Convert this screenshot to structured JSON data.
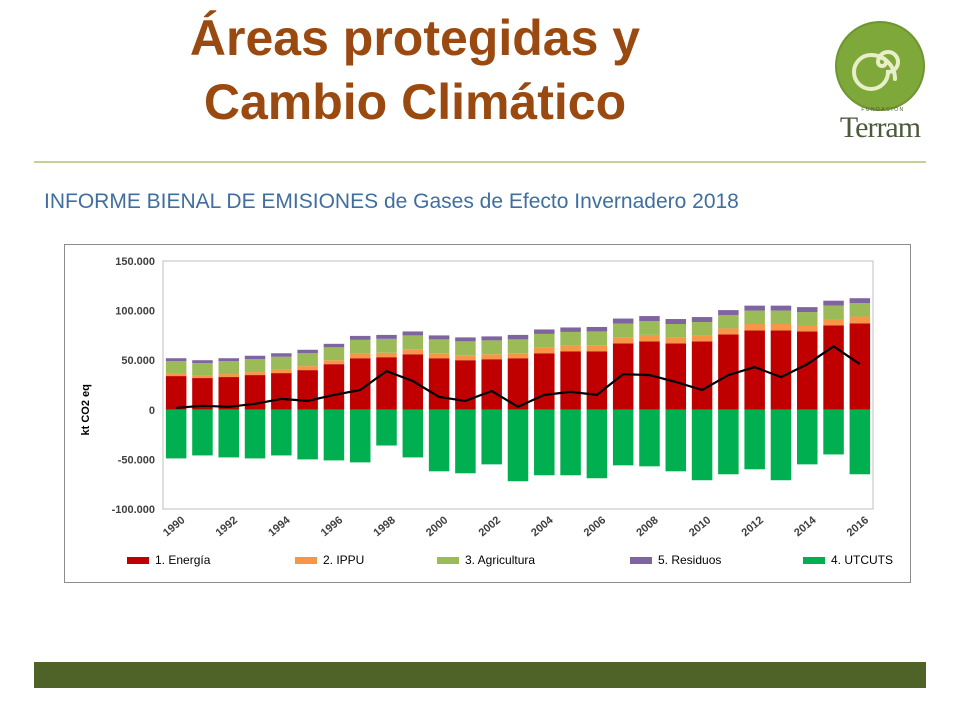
{
  "header": {
    "title_line1": "Áreas protegidas y",
    "title_line2": "Cambio Climático",
    "subtitle": "INFORME BIENAL DE EMISIONES de Gases de Efecto Invernadero 2018"
  },
  "logo": {
    "small_text": "FUNDACIÓN",
    "name": "Terram",
    "colors": {
      "outer": "#7fa83a",
      "inner": "#a6c35a",
      "text": "#4c5a3d"
    }
  },
  "colors": {
    "title": "#9a4a10",
    "subtitle": "#3f6fa0",
    "footer_bar": "#4f6228",
    "rule": "#c5cf9c"
  },
  "chart_data": {
    "type": "bar",
    "stacked": true,
    "ylabel": "kt CO2 eq",
    "ylim": [
      -100000,
      150000
    ],
    "yticks": [
      "150.000",
      "100.000",
      "50.000",
      "0",
      "-50.000",
      "-100.000"
    ],
    "ytick_values": [
      150000,
      100000,
      50000,
      0,
      -50000,
      -100000
    ],
    "grid": false,
    "legend_position": "bottom",
    "categories": [
      "1990",
      "1991",
      "1992",
      "1993",
      "1994",
      "1995",
      "1996",
      "1997",
      "1998",
      "1999",
      "2000",
      "2001",
      "2002",
      "2003",
      "2004",
      "2005",
      "2006",
      "2007",
      "2008",
      "2009",
      "2010",
      "2011",
      "2012",
      "2013",
      "2014",
      "2015",
      "2016"
    ],
    "xtick_labels": [
      "1990",
      "1992",
      "1994",
      "1996",
      "1998",
      "2000",
      "2002",
      "2004",
      "2006",
      "2008",
      "2010",
      "2012",
      "2014",
      "2016"
    ],
    "series": [
      {
        "name": "1. Energía",
        "color": "#c00000",
        "values": [
          34000,
          32000,
          33000,
          35000,
          37000,
          40000,
          46000,
          52000,
          53000,
          56000,
          52000,
          50000,
          51000,
          52000,
          57000,
          59000,
          59000,
          67000,
          69000,
          67000,
          69000,
          76000,
          80000,
          80000,
          79000,
          85000,
          87000
        ]
      },
      {
        "name": "2. IPPU",
        "color": "#f79646",
        "values": [
          3000,
          3000,
          3000,
          3000,
          3500,
          4000,
          4000,
          4500,
          4500,
          5000,
          5000,
          5000,
          5000,
          5000,
          5500,
          5500,
          6000,
          6000,
          6500,
          6000,
          6000,
          6000,
          6500,
          6500,
          6000,
          6500,
          7000
        ]
      },
      {
        "name": "3. Agricultura",
        "color": "#9bbb59",
        "values": [
          12000,
          12000,
          13000,
          13000,
          13000,
          13000,
          13000,
          14000,
          14000,
          14000,
          14000,
          14000,
          14000,
          14000,
          14000,
          14000,
          14000,
          14000,
          14000,
          13500,
          13500,
          13500,
          13500,
          13500,
          13500,
          13500,
          13500
        ]
      },
      {
        "name": "5. Residuos",
        "color": "#8064a2",
        "values": [
          3000,
          3000,
          3000,
          3500,
          3500,
          3500,
          3500,
          4000,
          4000,
          4000,
          4000,
          4000,
          4000,
          4500,
          4500,
          4500,
          4500,
          5000,
          5000,
          5000,
          5000,
          5000,
          5000,
          5000,
          5000,
          5000,
          5000
        ]
      },
      {
        "name": "4. UTCUTS",
        "color": "#00b050",
        "values": [
          -49000,
          -46000,
          -48000,
          -49000,
          -46000,
          -50000,
          -51000,
          -53000,
          -36000,
          -48000,
          -62000,
          -64000,
          -55000,
          -72000,
          -66000,
          -66000,
          -69000,
          -56000,
          -57000,
          -62000,
          -71000,
          -65000,
          -60000,
          -71000,
          -55000,
          -45000,
          -65000
        ]
      }
    ],
    "net_line": {
      "color": "#000000",
      "values": [
        2000,
        4000,
        3000,
        6000,
        11000,
        9000,
        15000,
        20000,
        39000,
        29000,
        13000,
        9000,
        19000,
        3000,
        15000,
        18000,
        15000,
        36000,
        35000,
        28000,
        20000,
        35000,
        43000,
        33000,
        46000,
        64000,
        46000
      ]
    }
  }
}
